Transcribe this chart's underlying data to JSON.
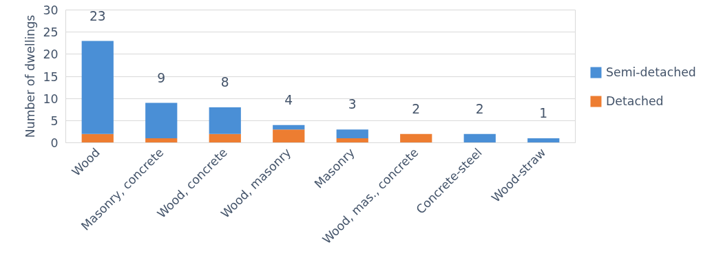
{
  "chart_data": {
    "type": "bar",
    "stacked": true,
    "ylabel": "Number of dwellings",
    "categories": [
      "Wood",
      "Masonry, concrete",
      "Wood, concrete",
      "Wood, masonry",
      "Masonry",
      "Wood, mas., concrete",
      "Concrete-steel",
      "Wood-straw"
    ],
    "series": [
      {
        "name": "Detached",
        "color": "#ed7d31",
        "values": [
          2,
          1,
          2,
          3,
          1,
          2,
          0,
          0
        ]
      },
      {
        "name": "Semi-detached",
        "color": "#4a8fd6",
        "values": [
          21,
          8,
          6,
          1,
          2,
          0,
          2,
          1
        ]
      }
    ],
    "totals": [
      "23",
      "9",
      "8",
      "4",
      "3",
      "2",
      "2",
      "1"
    ],
    "ylim": [
      0,
      30
    ],
    "yticks": [
      0,
      5,
      10,
      15,
      20,
      25,
      30
    ],
    "grid": "y",
    "legend": "right"
  }
}
